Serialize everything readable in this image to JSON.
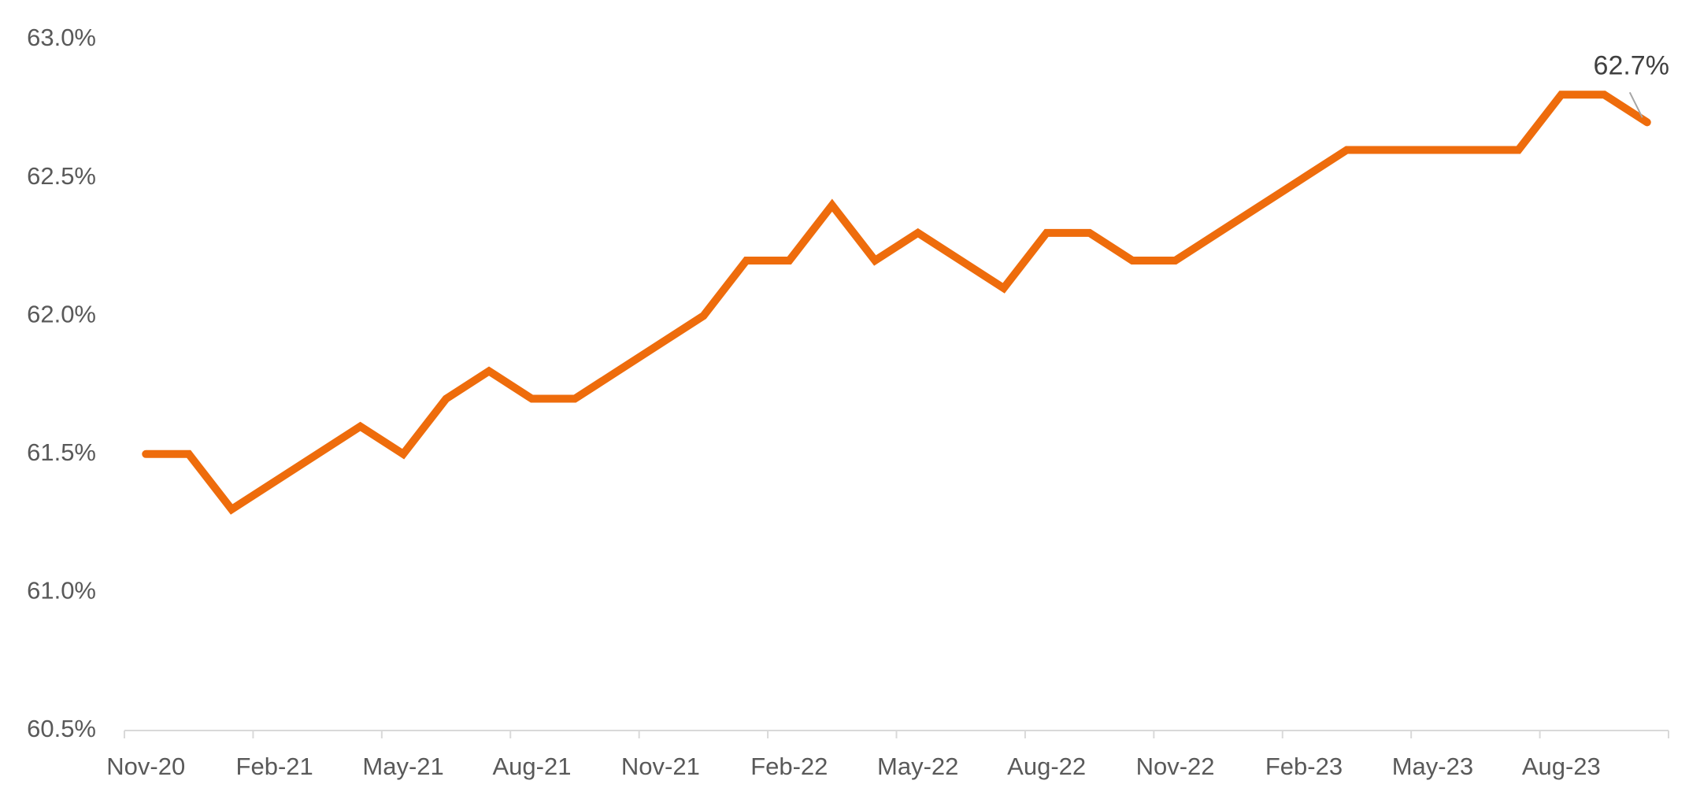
{
  "chart_data": {
    "type": "line",
    "categories": [
      "Nov-20",
      null,
      null,
      "Feb-21",
      null,
      null,
      "May-21",
      null,
      null,
      "Aug-21",
      null,
      null,
      "Nov-21",
      null,
      null,
      "Feb-22",
      null,
      null,
      "May-22",
      null,
      null,
      "Aug-22",
      null,
      null,
      "Nov-22",
      null,
      null,
      "Feb-23",
      null,
      null,
      "May-23",
      null,
      null,
      "Aug-23",
      null,
      null
    ],
    "series": [
      {
        "color": "#ee6c0c",
        "values": [
          61.5,
          61.5,
          61.3,
          61.4,
          61.5,
          61.6,
          61.5,
          61.7,
          61.8,
          61.7,
          61.7,
          61.8,
          61.9,
          62.0,
          62.2,
          62.2,
          62.4,
          62.2,
          62.3,
          62.2,
          62.1,
          62.3,
          62.3,
          62.2,
          62.2,
          62.3,
          62.4,
          62.5,
          62.6,
          62.6,
          62.6,
          62.6,
          62.6,
          62.8,
          62.8,
          62.7
        ],
        "value_labels": [
          null,
          null,
          null,
          null,
          null,
          null,
          null,
          null,
          null,
          null,
          null,
          null,
          null,
          null,
          null,
          null,
          null,
          null,
          null,
          null,
          null,
          null,
          null,
          null,
          null,
          null,
          null,
          null,
          null,
          null,
          null,
          null,
          null,
          null,
          null,
          "62.7%"
        ]
      }
    ],
    "ylim": [
      60.5,
      63.0
    ],
    "yticks": [
      {
        "value": 60.5,
        "label": "60.5%"
      },
      {
        "value": 61.0,
        "label": "61.0%"
      },
      {
        "value": 61.5,
        "label": "61.5%"
      },
      {
        "value": 62.0,
        "label": "62.0%"
      },
      {
        "value": 62.5,
        "label": "62.5%"
      },
      {
        "value": 63.0,
        "label": "63.0%"
      }
    ],
    "grid": false
  }
}
